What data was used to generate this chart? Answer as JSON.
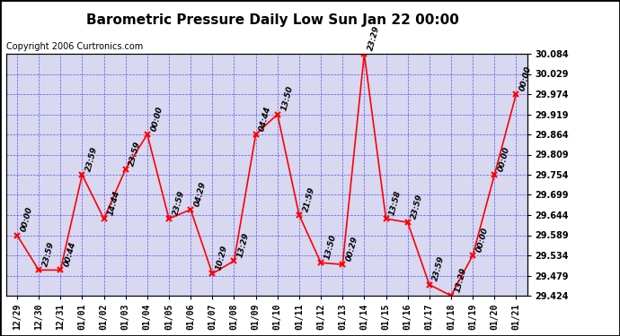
{
  "title": "Barometric Pressure Daily Low Sun Jan 22 00:00",
  "copyright": "Copyright 2006 Curtronics.com",
  "x_labels": [
    "12/29",
    "12/30",
    "12/31",
    "01/01",
    "01/02",
    "01/03",
    "01/04",
    "01/05",
    "01/06",
    "01/07",
    "01/08",
    "01/09",
    "01/10",
    "01/11",
    "01/12",
    "01/13",
    "01/14",
    "01/15",
    "01/16",
    "01/17",
    "01/18",
    "01/19",
    "01/20",
    "01/21"
  ],
  "y_values": [
    29.589,
    29.494,
    29.494,
    29.754,
    29.634,
    29.769,
    29.864,
    29.634,
    29.659,
    29.484,
    29.519,
    29.864,
    29.919,
    29.644,
    29.514,
    29.509,
    30.084,
    29.634,
    29.624,
    29.454,
    29.424,
    29.534,
    29.754,
    29.974
  ],
  "point_labels": [
    "00:00",
    "23:59",
    "00:44",
    "23:59",
    "14:44",
    "23:59",
    "00:00",
    "23:59",
    "04:29",
    "10:29",
    "13:29",
    "04:44",
    "13:50",
    "21:59",
    "13:50",
    "00:29",
    "23:29",
    "13:58",
    "23:59",
    "23:59",
    "13:29",
    "00:00",
    "00:00",
    "00:00"
  ],
  "ylim_min": 29.424,
  "ylim_max": 30.084,
  "ytick_values": [
    29.424,
    29.479,
    29.534,
    29.589,
    29.644,
    29.699,
    29.754,
    29.809,
    29.864,
    29.919,
    29.974,
    30.029,
    30.084
  ],
  "line_color": "red",
  "marker_color": "red",
  "bg_color": "white",
  "plot_bg_color": "#d8d8f0",
  "title_fontsize": 11,
  "tick_fontsize": 7,
  "point_label_fontsize": 6.5,
  "copyright_fontsize": 7
}
